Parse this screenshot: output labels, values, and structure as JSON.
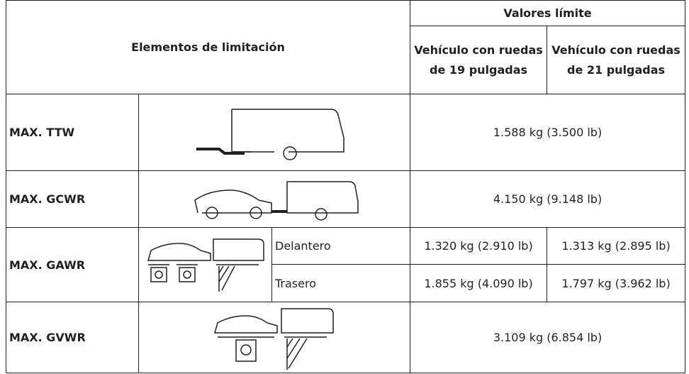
{
  "header": {
    "elements": "Elementos de limitación",
    "limits": "Valores límite",
    "col19": "Vehículo con ruedas de 19 pulgadas",
    "col21": "Vehículo con ruedas de 21 pulgadas"
  },
  "rows": [
    {
      "label": "MAX. TTW",
      "value": "1.588 kg (3.500 lb)"
    },
    {
      "label": "MAX. GCWR",
      "value": "4.150 kg (9.148 lb)"
    },
    {
      "label": "MAX. GAWR",
      "front": {
        "position": "Delantero",
        "v19": "1.320 kg (2.910 lb)",
        "v21": "1.313 kg (2.895 lb)"
      },
      "rear": {
        "position": "Trasero",
        "v19": "1.855 kg (4.090 lb)",
        "v21": "1.797 kg (3.962 lb)"
      }
    },
    {
      "label": "MAX. GVWR",
      "value": "3.109 kg (6.854 lb)"
    }
  ]
}
